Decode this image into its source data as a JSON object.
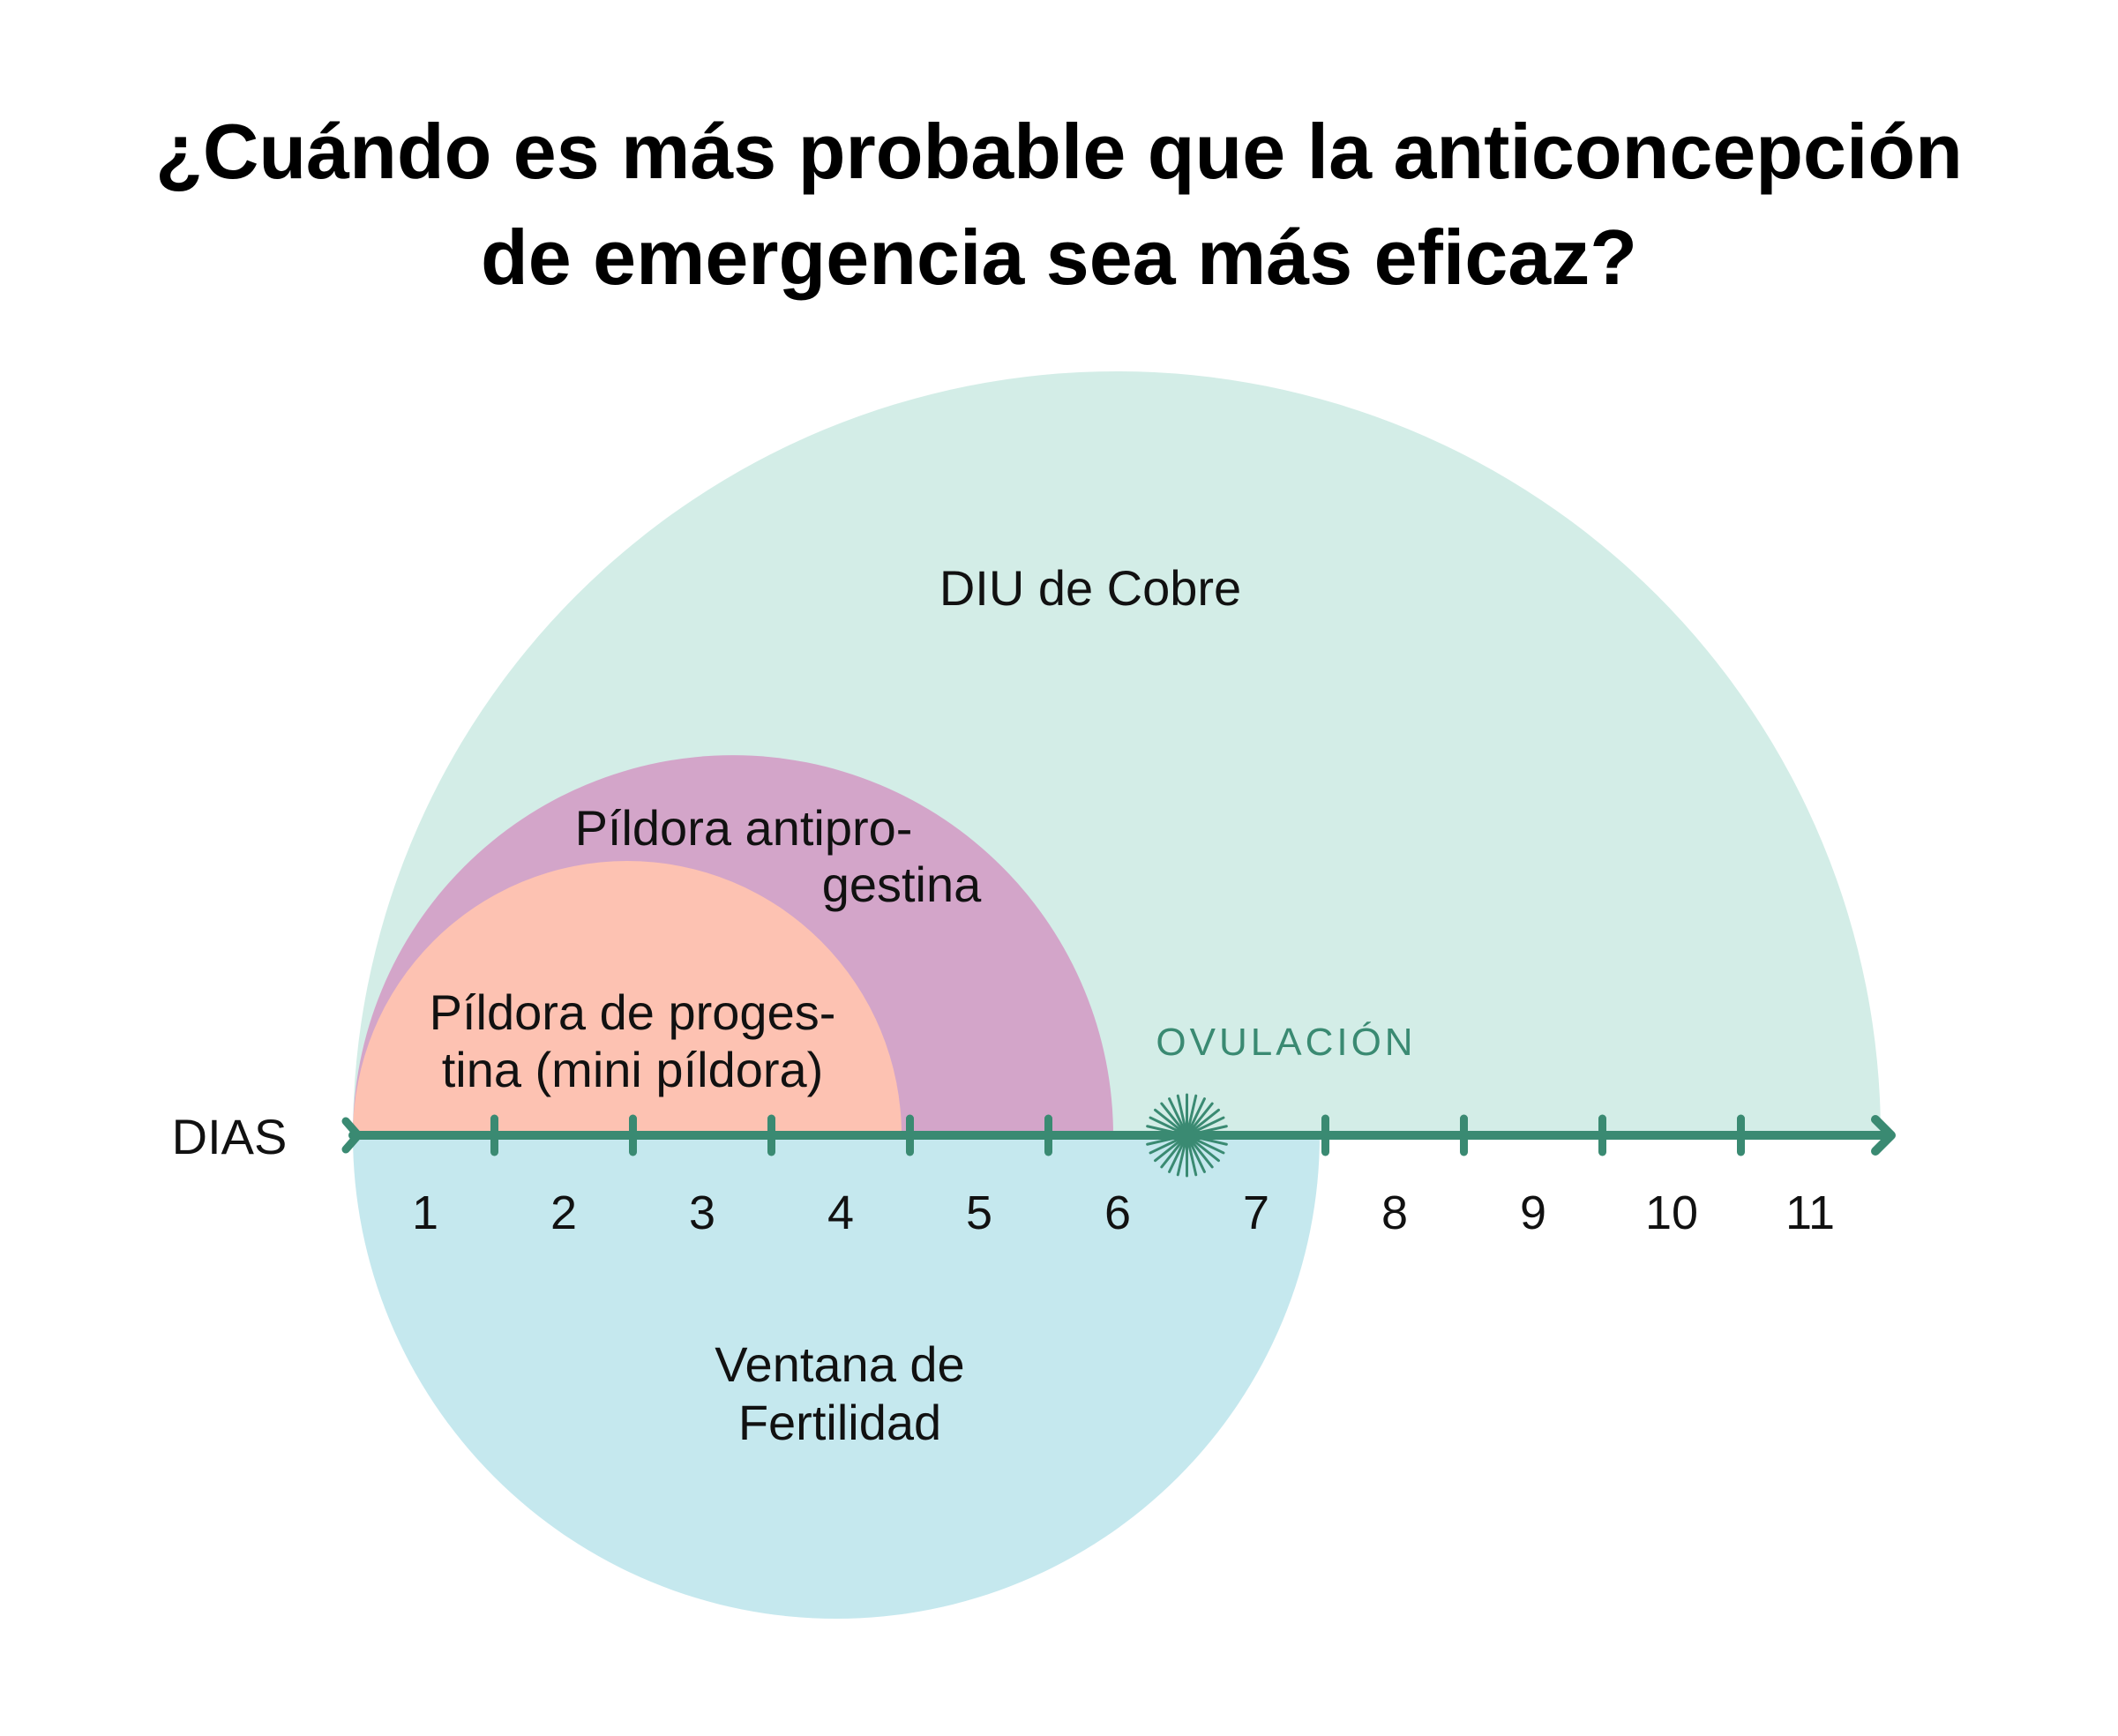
{
  "title": {
    "line1": "¿Cuándo es más probable que la anticoncepción",
    "line2": "de emergencia sea más eficaz?"
  },
  "axis": {
    "label": "DIAS",
    "days": [
      "1",
      "2",
      "3",
      "4",
      "5",
      "6",
      "7",
      "8",
      "9",
      "10",
      "11"
    ],
    "ovulation_label": "OVULACIÓN",
    "ovulation_between_days": [
      6,
      7
    ]
  },
  "regions": {
    "copper_iud": {
      "label": "DIU de Cobre",
      "days_covered": "1–11"
    },
    "antiprogestin_pill": {
      "label_line1": "Píldora antipro-",
      "label_line2": "gestina",
      "days_covered": "1–6"
    },
    "progestin_pill": {
      "label_line1": "Píldora de proges-",
      "label_line2": "tina (mini píldora)",
      "days_covered": "1–4"
    },
    "fertility_window": {
      "label_line1": "Ventana de",
      "label_line2": "Fertilidad",
      "days_covered": "1–7"
    }
  },
  "colors": {
    "copper_iud": "#d3ede7",
    "antiprogestin_pill": "#d3a5c9",
    "progestin_pill": "#fdc2b2",
    "fertility_window": "#c5e8ee",
    "axis": "#3a8a72",
    "ovulation_text": "#3a8a72",
    "text": "#111111"
  }
}
